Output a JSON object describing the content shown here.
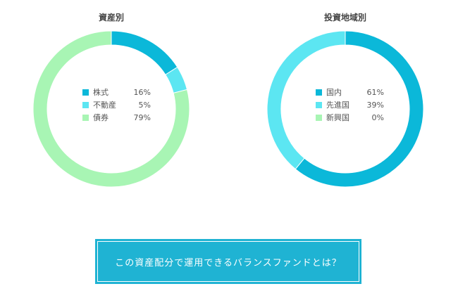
{
  "chart_data": [
    {
      "type": "pie",
      "title": "資産別",
      "categories": [
        "株式",
        "不動産",
        "債券"
      ],
      "values": [
        16,
        5,
        79
      ],
      "value_labels": [
        "16%",
        "5%",
        "79%"
      ],
      "colors": [
        "#0bb8d9",
        "#5ce6f2",
        "#a8f5b4"
      ],
      "legend_position": "center"
    },
    {
      "type": "pie",
      "title": "投資地域別",
      "categories": [
        "国内",
        "先進国",
        "新興国"
      ],
      "values": [
        61,
        39,
        0
      ],
      "value_labels": [
        "61%",
        "39%",
        "0%"
      ],
      "colors": [
        "#0bb8d9",
        "#5ce6f2",
        "#a8f5b4"
      ],
      "legend_position": "center"
    }
  ],
  "cta": {
    "label": "この資産配分で運用できるバランスファンドとは？"
  },
  "colors": {
    "cta_background": "#1fb3d3"
  }
}
